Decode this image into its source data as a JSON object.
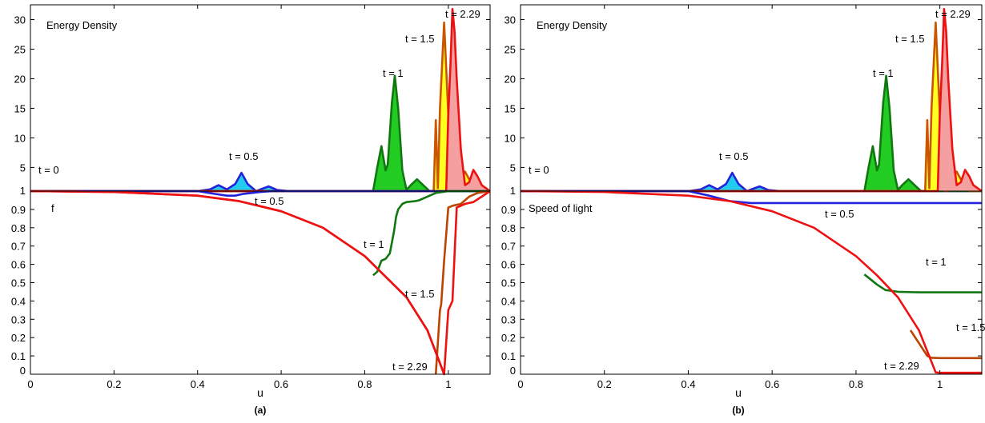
{
  "chart_data": [
    {
      "panel": "a",
      "type": "line",
      "caption": "(a)",
      "xlabel": "u",
      "xlim": [
        0,
        1.1
      ],
      "x_ticks": [
        "0",
        "0.2",
        "0.4",
        "0.6",
        "0.8",
        "1"
      ],
      "top": {
        "label": "Energy Density",
        "ylim": [
          1,
          32.5
        ],
        "y_ticks": [
          "1",
          "5",
          "10",
          "15",
          "20",
          "25",
          "30"
        ],
        "annotations": [
          "t = 0",
          "t = 0.5",
          "t = 1",
          "t = 1.5",
          "t = 2.29"
        ],
        "series": [
          {
            "name": "t = 0",
            "color": "#2b3a8f",
            "fill": false,
            "x": [
              0,
              1.1
            ],
            "y": [
              1,
              1
            ]
          },
          {
            "name": "t = 0.5",
            "color": "#2222dd",
            "fill": "#22ccee",
            "x": [
              0.0,
              0.4,
              0.43,
              0.45,
              0.47,
              0.49,
              0.505,
              0.52,
              0.54,
              0.555,
              0.57,
              0.59,
              0.62,
              1.1
            ],
            "y": [
              1,
              1,
              1.3,
              2.0,
              1.3,
              2.2,
              4.1,
              2.2,
              1.0,
              1.4,
              1.8,
              1.2,
              1,
              1
            ]
          },
          {
            "name": "t = 1",
            "color": "#117711",
            "fill": "#22cc22",
            "x": [
              0.0,
              0.82,
              0.83,
              0.84,
              0.85,
              0.855,
              0.865,
              0.872,
              0.88,
              0.89,
              0.9,
              0.91,
              0.925,
              0.94,
              0.955,
              1.1
            ],
            "y": [
              1,
              1,
              5.0,
              8.6,
              4.5,
              5.5,
              16,
              20.5,
              15,
              4.5,
              1.2,
              2.0,
              3.0,
              2.0,
              1,
              1
            ]
          },
          {
            "name": "t = 1.5",
            "color": "#cc5500",
            "fill": "#ffff22",
            "x": [
              0.0,
              0.965,
              0.97,
              0.975,
              0.98,
              0.99,
              1.0,
              1.005,
              1.01,
              1.02,
              1.03,
              1.04,
              1.05,
              1.07,
              1.1
            ],
            "y": [
              1,
              1,
              13,
              1.5,
              15,
              29.5,
              14,
              1.5,
              1,
              1,
              3.0,
              4.3,
              3.0,
              1,
              1
            ]
          },
          {
            "name": "t = 2.29",
            "color": "#ee1111",
            "fill": "#f4a0a0",
            "x": [
              0.0,
              0.995,
              1.0,
              1.005,
              1.01,
              1.015,
              1.02,
              1.03,
              1.04,
              1.05,
              1.06,
              1.07,
              1.08,
              1.09,
              1.1
            ],
            "y": [
              1,
              1,
              14,
              22,
              31.8,
              28,
              20,
              8,
              2.0,
              2.5,
              4.6,
              3.5,
              2.0,
              1.5,
              1
            ]
          }
        ]
      },
      "bottom": {
        "label": "f",
        "ylim": [
          0,
          1
        ],
        "y_ticks": [
          "0",
          "0.1",
          "0.2",
          "0.3",
          "0.4",
          "0.5",
          "0.6",
          "0.7",
          "0.8",
          "0.9"
        ],
        "annotations": [
          "t = 0.5",
          "t = 1",
          "t = 1.5",
          "t = 2.29"
        ],
        "series": [
          {
            "name": "t = 0.5",
            "color": "#2222dd",
            "x": [
              0.0,
              0.4,
              0.44,
              0.47,
              0.49,
              0.51,
              0.53,
              0.55,
              0.58,
              1.1
            ],
            "y": [
              1,
              1,
              0.985,
              0.975,
              0.975,
              0.985,
              0.99,
              0.995,
              1,
              1
            ]
          },
          {
            "name": "t = 1",
            "color": "#117711",
            "x": [
              0.82,
              0.83,
              0.84,
              0.85,
              0.86,
              0.87,
              0.875,
              0.88,
              0.89,
              0.9,
              0.92,
              0.93,
              0.95,
              0.97,
              1.0,
              1.1
            ],
            "y": [
              0.54,
              0.56,
              0.62,
              0.63,
              0.66,
              0.78,
              0.86,
              0.9,
              0.93,
              0.94,
              0.945,
              0.95,
              0.97,
              0.99,
              1.0,
              1.0
            ]
          },
          {
            "name": "t = 1.5",
            "color": "#bb4400",
            "x": [
              0.97,
              0.98,
              0.983,
              0.99,
              1.0,
              1.005,
              1.01,
              1.03,
              1.05,
              1.07,
              1.1
            ],
            "y": [
              0.0,
              0.35,
              0.38,
              0.62,
              0.91,
              0.915,
              0.92,
              0.93,
              0.97,
              0.99,
              1.0
            ]
          },
          {
            "name": "t = 2.29",
            "color": "#ee1111",
            "x": [
              0.0,
              0.2,
              0.4,
              0.5,
              0.6,
              0.7,
              0.8,
              0.9,
              0.95,
              0.99,
              1.0,
              1.01,
              1.02,
              1.03,
              1.04,
              1.06,
              1.08,
              1.1
            ],
            "y": [
              1,
              0.995,
              0.975,
              0.945,
              0.89,
              0.8,
              0.645,
              0.42,
              0.24,
              0.0,
              0.35,
              0.4,
              0.91,
              0.92,
              0.93,
              0.94,
              0.97,
              1.0
            ]
          },
          {
            "name": "t = 0",
            "color": "#ee1111",
            "x": [
              0.0,
              0.2,
              0.4,
              0.5,
              0.6,
              0.7,
              0.8,
              0.9,
              0.95,
              0.99
            ],
            "y": [
              1,
              0.995,
              0.975,
              0.945,
              0.89,
              0.8,
              0.645,
              0.42,
              0.24,
              0.0
            ]
          }
        ]
      }
    },
    {
      "panel": "b",
      "type": "line",
      "caption": "(b)",
      "xlabel": "u",
      "xlim": [
        0,
        1.1
      ],
      "x_ticks": [
        "0",
        "0.2",
        "0.4",
        "0.6",
        "0.8",
        "1"
      ],
      "top": {
        "label": "Energy Density",
        "ylim": [
          1,
          32.5
        ],
        "y_ticks": [
          "1",
          "5",
          "10",
          "15",
          "20",
          "25",
          "30"
        ],
        "annotations": [
          "t = 0",
          "t = 0.5",
          "t = 1",
          "t = 1.5",
          "t = 2.29"
        ],
        "series": [
          {
            "name": "t = 0",
            "color": "#2b3a8f",
            "fill": false,
            "x": [
              0,
              1.1
            ],
            "y": [
              1,
              1
            ]
          },
          {
            "name": "t = 0.5",
            "color": "#2222dd",
            "fill": "#22ccee",
            "x": [
              0.0,
              0.4,
              0.43,
              0.45,
              0.47,
              0.49,
              0.505,
              0.52,
              0.54,
              0.555,
              0.57,
              0.59,
              0.62,
              1.1
            ],
            "y": [
              1,
              1,
              1.3,
              2.0,
              1.3,
              2.2,
              4.1,
              2.2,
              1.0,
              1.4,
              1.8,
              1.2,
              1,
              1
            ]
          },
          {
            "name": "t = 1",
            "color": "#117711",
            "fill": "#22cc22",
            "x": [
              0.0,
              0.82,
              0.83,
              0.84,
              0.85,
              0.855,
              0.865,
              0.872,
              0.88,
              0.89,
              0.9,
              0.91,
              0.925,
              0.94,
              0.955,
              1.1
            ],
            "y": [
              1,
              1,
              5.0,
              8.6,
              4.5,
              5.5,
              16,
              20.5,
              15,
              4.5,
              1.2,
              2.0,
              3.0,
              2.0,
              1,
              1
            ]
          },
          {
            "name": "t = 1.5",
            "color": "#cc5500",
            "fill": "#ffff22",
            "x": [
              0.0,
              0.965,
              0.97,
              0.975,
              0.98,
              0.99,
              1.0,
              1.005,
              1.01,
              1.02,
              1.03,
              1.04,
              1.05,
              1.07,
              1.1
            ],
            "y": [
              1,
              1,
              13,
              1.5,
              15,
              29.5,
              14,
              1.5,
              1,
              1,
              3.0,
              4.3,
              3.0,
              1,
              1
            ]
          },
          {
            "name": "t = 2.29",
            "color": "#ee1111",
            "fill": "#f4a0a0",
            "x": [
              0.0,
              0.995,
              1.0,
              1.005,
              1.01,
              1.015,
              1.02,
              1.03,
              1.04,
              1.05,
              1.06,
              1.07,
              1.08,
              1.09,
              1.1
            ],
            "y": [
              1,
              1,
              14,
              22,
              31.8,
              28,
              20,
              8,
              2.0,
              2.5,
              4.6,
              3.5,
              2.0,
              1.5,
              1
            ]
          }
        ]
      },
      "bottom": {
        "label": "Speed of light",
        "ylim": [
          0,
          1
        ],
        "y_ticks": [
          "0",
          "0.1",
          "0.2",
          "0.3",
          "0.4",
          "0.5",
          "0.6",
          "0.7",
          "0.8",
          "0.9"
        ],
        "annotations": [
          "t = 0.5",
          "t = 1",
          "t = 1.5",
          "t = 2.29"
        ],
        "series": [
          {
            "name": "t = 0.5",
            "color": "#2222dd",
            "x": [
              0.0,
              0.4,
              0.45,
              0.5,
              0.55,
              0.6,
              1.1
            ],
            "y": [
              1,
              1,
              0.975,
              0.945,
              0.935,
              0.935,
              0.935
            ]
          },
          {
            "name": "t = 1",
            "color": "#117711",
            "x": [
              0.82,
              0.85,
              0.87,
              0.9,
              0.95,
              1.0,
              1.1
            ],
            "y": [
              0.545,
              0.49,
              0.46,
              0.45,
              0.447,
              0.447,
              0.447
            ]
          },
          {
            "name": "t = 1.5",
            "color": "#bb4400",
            "x": [
              0.93,
              0.95,
              0.97,
              0.98,
              1.0,
              1.05,
              1.1
            ],
            "y": [
              0.24,
              0.17,
              0.1,
              0.09,
              0.088,
              0.088,
              0.088
            ]
          },
          {
            "name": "t = 2.29",
            "color": "#ee1111",
            "x": [
              0.0,
              0.2,
              0.4,
              0.5,
              0.6,
              0.7,
              0.8,
              0.85,
              0.9,
              0.95,
              0.99,
              1.0,
              1.05,
              1.1
            ],
            "y": [
              1,
              0.995,
              0.975,
              0.945,
              0.89,
              0.8,
              0.645,
              0.54,
              0.42,
              0.24,
              0.01,
              0.008,
              0.008,
              0.008
            ]
          }
        ]
      }
    }
  ]
}
